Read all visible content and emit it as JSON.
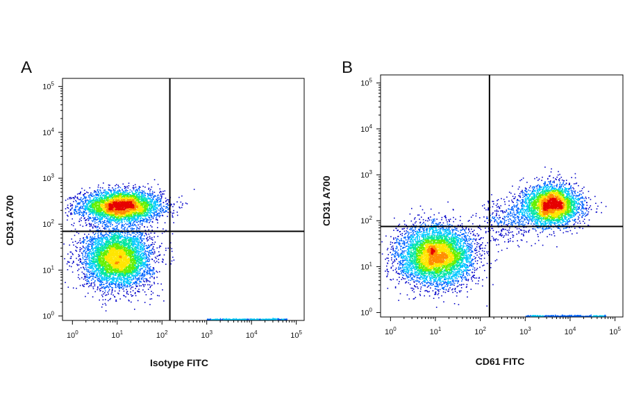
{
  "figure": {
    "panels": [
      {
        "id": "A",
        "letter": "A",
        "xlabel": "Isotype FITC",
        "ylabel": "CD31 A700"
      },
      {
        "id": "B",
        "letter": "B",
        "xlabel": "CD61 FITC",
        "ylabel": "CD31 A700"
      }
    ]
  },
  "colors": {
    "density_scale": [
      "#0000c8",
      "#0064ff",
      "#00c8ff",
      "#00e6a0",
      "#64f000",
      "#ffe600",
      "#ff8c00",
      "#e60000"
    ],
    "gate_lines": "#000000",
    "axes": "#000000"
  },
  "chart_data": [
    {
      "type": "scatter",
      "subtype": "flow-cytometry-density-dot-plot",
      "panel": "A",
      "xlabel": "Isotype FITC",
      "ylabel": "CD31 A700",
      "xscale": "log",
      "yscale": "log",
      "xlim": [
        0.6,
        150000
      ],
      "ylim": [
        0.8,
        150000
      ],
      "x_tick_values": [
        1,
        10,
        100,
        1000,
        10000,
        100000
      ],
      "y_tick_values": [
        1,
        10,
        100,
        1000,
        10000,
        100000
      ],
      "x_tick_labels": [
        "10^0",
        "10^1",
        "10^2",
        "10^3",
        "10^4",
        "10^5"
      ],
      "y_tick_labels": [
        "10^0",
        "10^1",
        "10^2",
        "10^3",
        "10^4",
        "10^5"
      ],
      "quadrant_gate": {
        "x": 150,
        "y": 70
      },
      "populations": [
        {
          "label": "CD31-high",
          "center_x": 12,
          "center_y": 250,
          "spread_x_decades": 0.45,
          "spread_y_decades": 0.17,
          "relative_count": 0.45
        },
        {
          "label": "CD31-low",
          "center_x": 10,
          "center_y": 18,
          "spread_x_decades": 0.38,
          "spread_y_decades": 0.32,
          "relative_count": 0.5
        },
        {
          "label": "axis-baseline",
          "x_range": [
            1000,
            60000
          ],
          "y": 0.85,
          "relative_count": 0.05
        }
      ]
    },
    {
      "type": "scatter",
      "subtype": "flow-cytometry-density-dot-plot",
      "panel": "B",
      "xlabel": "CD61 FITC",
      "ylabel": "CD31 A700",
      "xscale": "log",
      "yscale": "log",
      "xlim": [
        0.6,
        150000
      ],
      "ylim": [
        0.8,
        150000
      ],
      "x_tick_values": [
        1,
        10,
        100,
        1000,
        10000,
        100000
      ],
      "y_tick_values": [
        1,
        10,
        100,
        1000,
        10000,
        100000
      ],
      "x_tick_labels": [
        "10^0",
        "10^1",
        "10^2",
        "10^3",
        "10^4",
        "10^5"
      ],
      "y_tick_labels": [
        "10^0",
        "10^1",
        "10^2",
        "10^3",
        "10^4",
        "10^5"
      ],
      "quadrant_gate": {
        "x": 160,
        "y": 75
      },
      "populations": [
        {
          "label": "CD61-neg CD31-low",
          "center_x": 10,
          "center_y": 18,
          "spread_x_decades": 0.42,
          "spread_y_decades": 0.33,
          "relative_count": 0.55
        },
        {
          "label": "CD61+ CD31+",
          "center_x": 4000,
          "center_y": 220,
          "spread_x_decades": 0.32,
          "spread_y_decades": 0.22,
          "relative_count": 0.35
        },
        {
          "label": "bridge",
          "from_x": 150,
          "to_x": 3000,
          "from_y": 90,
          "to_y": 180,
          "relative_count": 0.06
        },
        {
          "label": "axis-baseline",
          "x_range": [
            1000,
            60000
          ],
          "y": 0.85,
          "relative_count": 0.04
        }
      ]
    }
  ]
}
